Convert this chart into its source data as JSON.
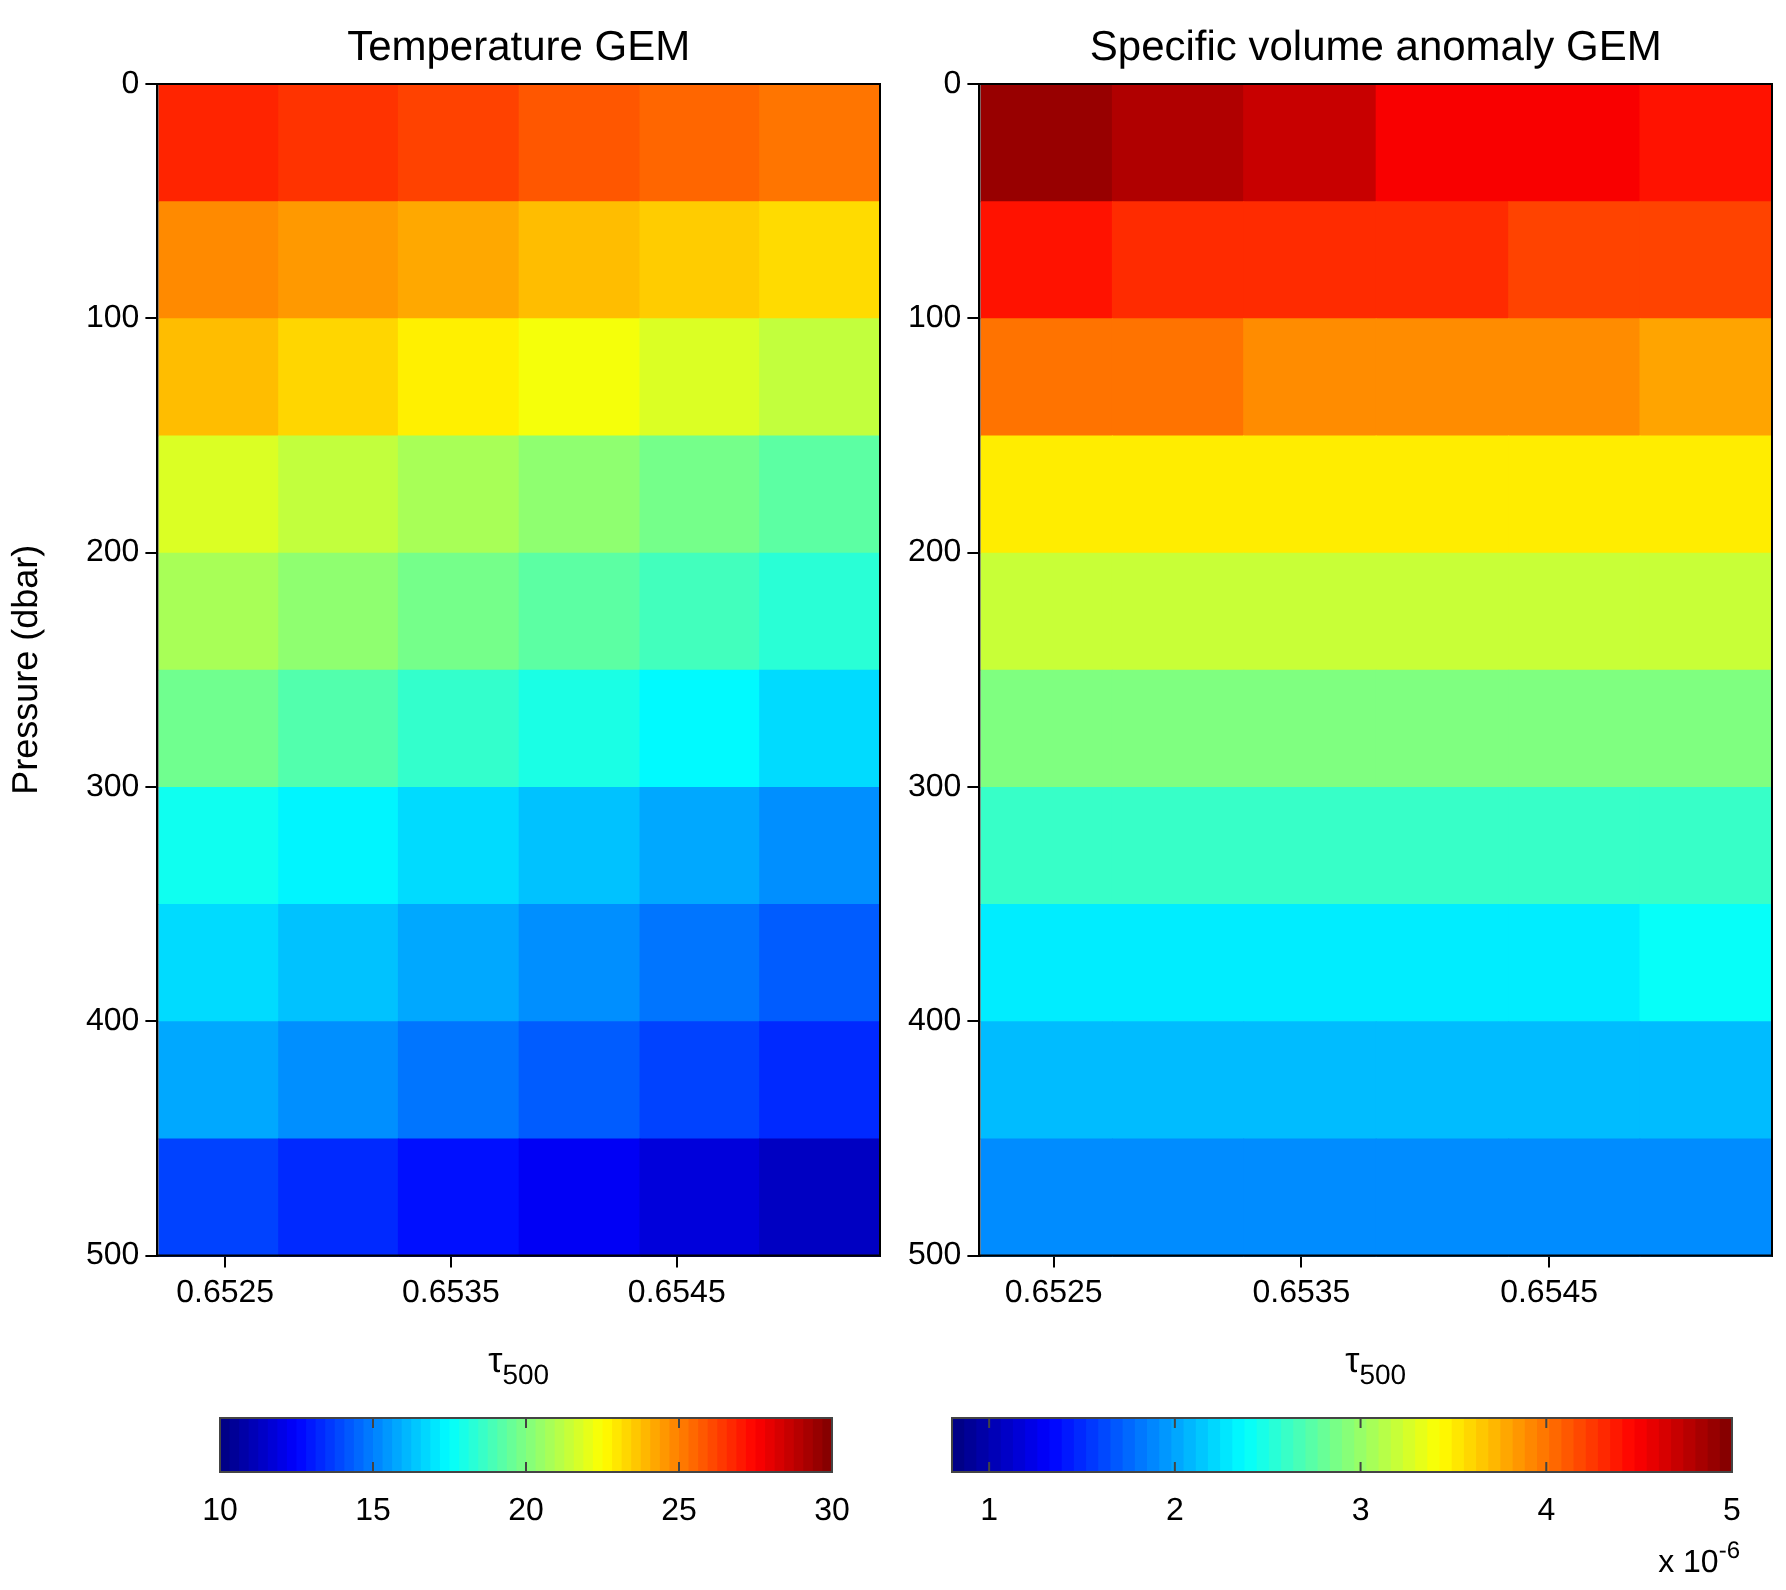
{
  "chart_data": [
    {
      "type": "heatmap",
      "title": "Temperature GEM",
      "xlabel": "τ$_{500}$",
      "ylabel": "Pressure (dbar)",
      "x": [
        0.65247,
        0.653,
        0.65353,
        0.65407,
        0.6546,
        0.65513
      ],
      "y": [
        25,
        75,
        125,
        175,
        225,
        275,
        325,
        375,
        425,
        475
      ],
      "cells": [
        [
          26.8,
          26.5,
          26.2,
          25.8,
          25.5,
          25.2
        ],
        [
          24.8,
          24.5,
          24.2,
          23.8,
          23.5,
          23.2
        ],
        [
          23.8,
          23.3,
          22.8,
          22.3,
          21.8,
          21.3
        ],
        [
          21.8,
          21.3,
          20.8,
          20.3,
          19.8,
          19.3
        ],
        [
          20.8,
          20.3,
          19.8,
          19.3,
          18.8,
          18.3
        ],
        [
          19.7,
          19.1,
          18.5,
          18.0,
          17.4,
          16.8
        ],
        [
          17.8,
          17.3,
          16.8,
          16.3,
          15.8,
          15.3
        ],
        [
          16.8,
          16.3,
          15.8,
          15.3,
          14.8,
          14.3
        ],
        [
          15.8,
          15.3,
          14.8,
          14.3,
          13.8,
          13.3
        ],
        [
          13.8,
          13.3,
          12.8,
          12.3,
          11.8,
          11.3
        ]
      ],
      "xlim": [
        0.6522,
        0.6554
      ],
      "xticks": [
        0.6525,
        0.6535,
        0.6545
      ],
      "ylim": [
        500,
        0
      ],
      "yticks": [
        0,
        100,
        200,
        300,
        400,
        500
      ],
      "clim": [
        10,
        30
      ],
      "cticks": [
        10,
        15,
        20,
        25,
        30
      ]
    },
    {
      "type": "heatmap",
      "title": "Specific volume anomaly GEM",
      "xlabel": "τ$_{500}$",
      "x": [
        0.65247,
        0.653,
        0.65353,
        0.65407,
        0.6546,
        0.65513
      ],
      "y": [
        25,
        75,
        125,
        175,
        225,
        275,
        325,
        375,
        425,
        475
      ],
      "cells": [
        [
          4.9,
          4.8,
          4.7,
          4.5,
          4.5,
          4.4
        ],
        [
          4.4,
          4.3,
          4.3,
          4.3,
          4.2,
          4.2
        ],
        [
          4.0,
          4.0,
          3.9,
          3.9,
          3.9,
          3.8
        ],
        [
          3.5,
          3.5,
          3.5,
          3.5,
          3.5,
          3.5
        ],
        [
          3.2,
          3.2,
          3.2,
          3.2,
          3.2,
          3.2
        ],
        [
          2.9,
          2.9,
          2.9,
          2.9,
          2.9,
          2.9
        ],
        [
          2.6,
          2.6,
          2.6,
          2.6,
          2.6,
          2.6
        ],
        [
          2.3,
          2.3,
          2.3,
          2.3,
          2.3,
          2.4
        ],
        [
          2.1,
          2.1,
          2.1,
          2.1,
          2.1,
          2.1
        ],
        [
          1.9,
          1.9,
          1.9,
          1.9,
          1.9,
          1.9
        ]
      ],
      "xlim": [
        0.6522,
        0.6554
      ],
      "xticks": [
        0.6525,
        0.6535,
        0.6545
      ],
      "ylim": [
        500,
        0
      ],
      "yticks": [
        0,
        100,
        200,
        300,
        400,
        500
      ],
      "clim": [
        0.8,
        5.0
      ],
      "cticks": [
        1,
        2,
        3,
        4,
        5
      ],
      "annotations": [
        "x 10$^{-6}$"
      ]
    }
  ]
}
